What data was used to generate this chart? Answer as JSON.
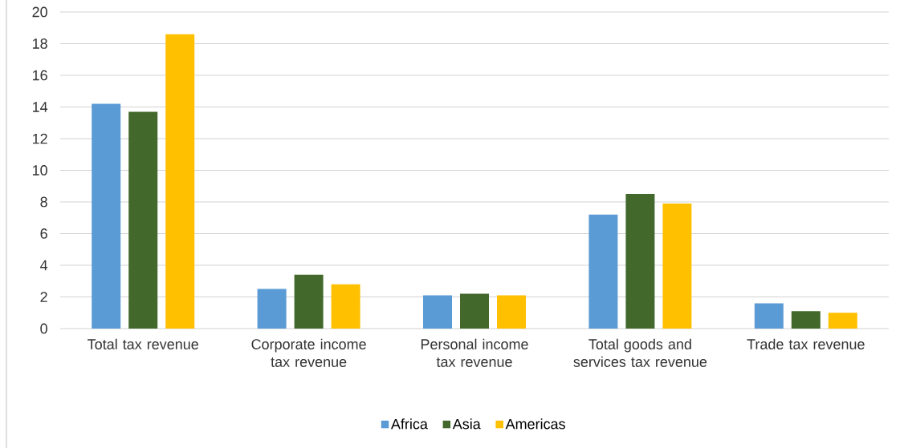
{
  "chart_data": {
    "type": "bar",
    "categories": [
      "Total tax revenue",
      "Corporate income tax revenue",
      "Personal income tax revenue",
      "Total goods and services tax revenue",
      "Trade tax revenue"
    ],
    "series": [
      {
        "name": "Africa",
        "color": "#5b9bd5",
        "values": [
          14.2,
          2.5,
          2.1,
          7.2,
          1.6
        ]
      },
      {
        "name": "Asia",
        "color": "#43682b",
        "values": [
          13.7,
          3.4,
          2.2,
          8.5,
          1.1
        ]
      },
      {
        "name": "Americas",
        "color": "#ffc000",
        "values": [
          18.6,
          2.8,
          2.1,
          7.9,
          1.0
        ]
      }
    ],
    "ylim": [
      0,
      20
    ],
    "yticks": [
      0,
      2,
      4,
      6,
      8,
      10,
      12,
      14,
      16,
      18,
      20
    ],
    "grid": "y",
    "legend": "bottom"
  }
}
